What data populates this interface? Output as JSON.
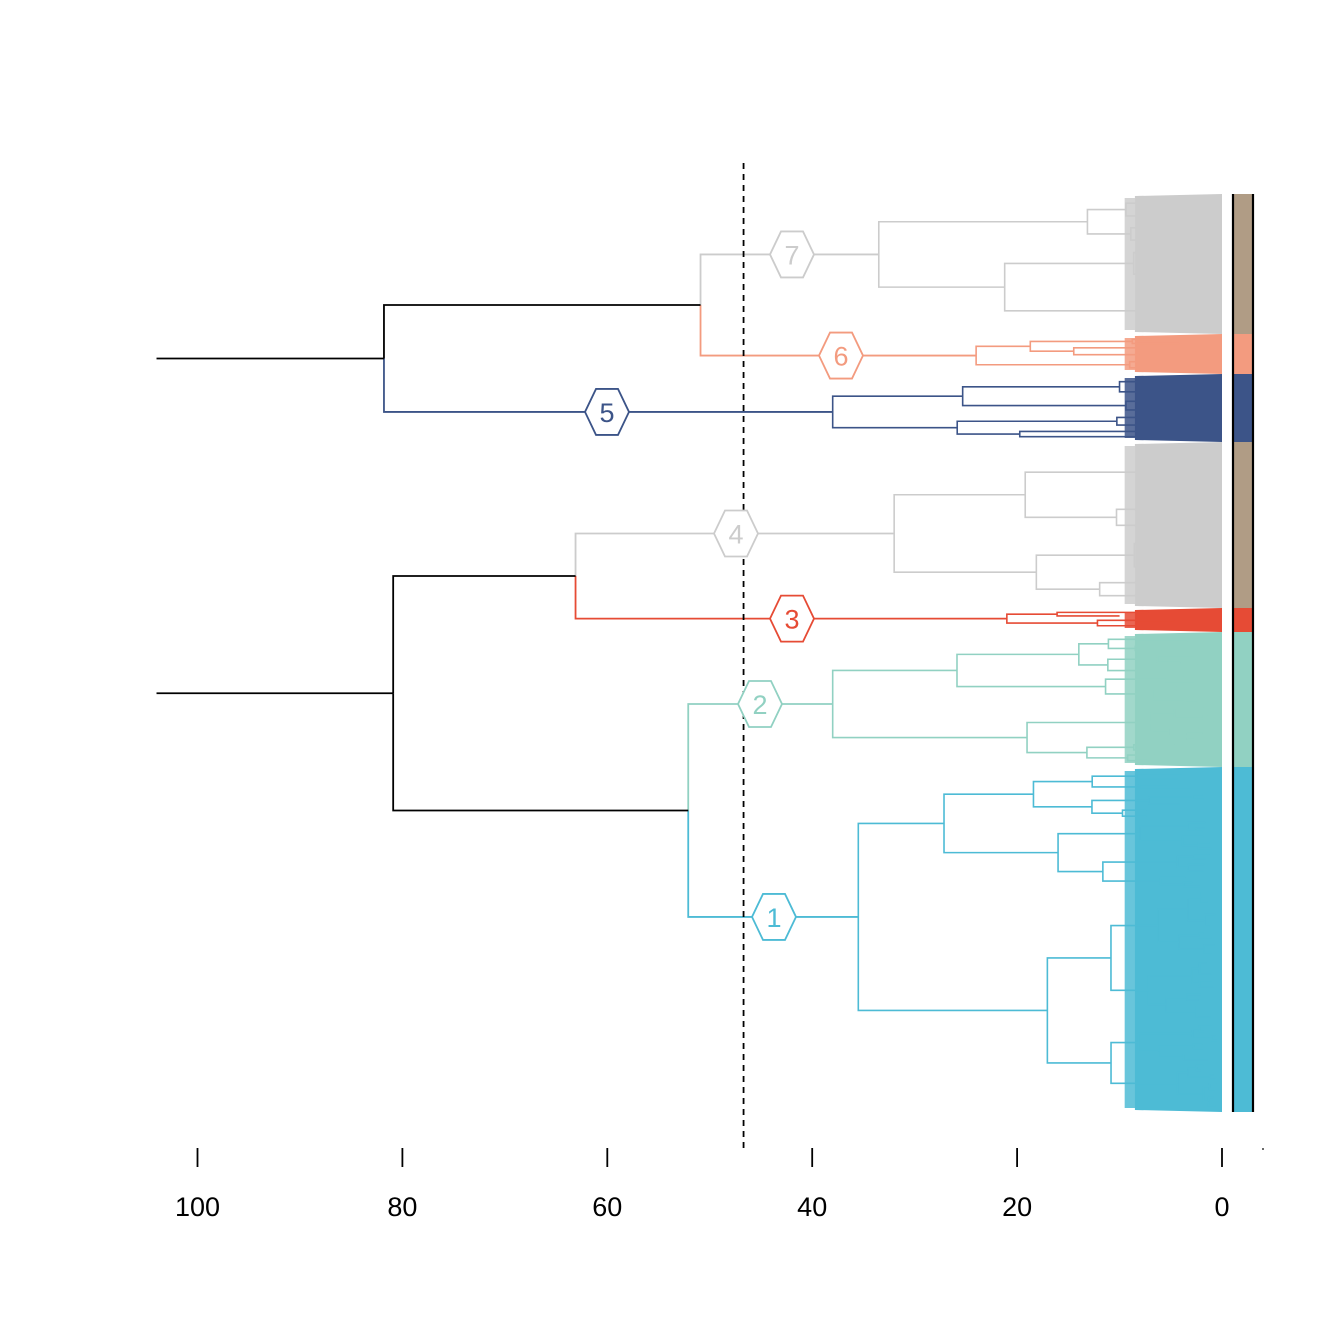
{
  "chart_data": {
    "type": "dendrogram",
    "orientation": "horizontal, root at left, leaves at right",
    "x_axis": {
      "ticks": [
        100,
        80,
        60,
        40,
        20,
        0
      ],
      "tick_labels": [
        "100",
        "80",
        "60",
        "40",
        "20",
        "0"
      ],
      "reversed": true,
      "range": [
        100,
        0
      ]
    },
    "cut_height": 46.7,
    "root_merges": [
      {
        "children": [
          "upper-group",
          "lower-group"
        ],
        "height": 104
      },
      {
        "children": [
          "cluster-7+6",
          "cluster-5"
        ],
        "height": 81.8
      },
      {
        "children": [
          "cluster-7",
          "cluster-6"
        ],
        "height": 50.9
      },
      {
        "children": [
          "cluster-4+3",
          "cluster-2+1"
        ],
        "height": 80.9
      },
      {
        "children": [
          "cluster-4",
          "cluster-3"
        ],
        "height": 63.1
      },
      {
        "children": [
          "cluster-2",
          "cluster-1"
        ],
        "height": 52.1
      }
    ],
    "clusters": [
      {
        "id": "1",
        "label": "1",
        "color": "#4DBBD5",
        "merge_height": 35.5,
        "bar_color": "#4DBBD5"
      },
      {
        "id": "2",
        "label": "2",
        "color": "#91D1C2",
        "merge_height": 38.0,
        "bar_color": "#91D1C2"
      },
      {
        "id": "3",
        "label": "3",
        "color": "#E64B35",
        "merge_height": 21.0,
        "bar_color": "#E64B35"
      },
      {
        "id": "4",
        "label": "4",
        "color": "#CCCCCC",
        "merge_height": 32.0,
        "bar_color": "#B09C85"
      },
      {
        "id": "5",
        "label": "5",
        "color": "#3C5488",
        "merge_height": 38.0,
        "bar_color": "#3C5488"
      },
      {
        "id": "6",
        "label": "6",
        "color": "#F39B7F",
        "merge_height": 24.0,
        "bar_color": "#F39B7F"
      },
      {
        "id": "7",
        "label": "7",
        "color": "#CCCCCC",
        "merge_height": 33.5,
        "bar_color": "#B09C85"
      }
    ],
    "colors": {
      "trunk": "#000000",
      "cut_line": "#000000"
    }
  }
}
